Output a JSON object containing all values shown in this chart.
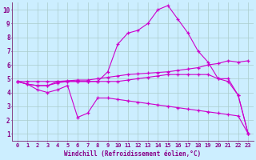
{
  "xlabel": "Windchill (Refroidissement éolien,°C)",
  "background_color": "#cceeff",
  "line_color": "#cc00cc",
  "grid_color": "#aacccc",
  "spine_color": "#884488",
  "xlim": [
    -0.5,
    23.5
  ],
  "ylim": [
    0.5,
    10.5
  ],
  "xticks": [
    0,
    1,
    2,
    3,
    4,
    5,
    6,
    7,
    8,
    9,
    10,
    11,
    12,
    13,
    14,
    15,
    16,
    17,
    18,
    19,
    20,
    21,
    22,
    23
  ],
  "yticks": [
    1,
    2,
    3,
    4,
    5,
    6,
    7,
    8,
    9,
    10
  ],
  "lines": [
    {
      "x": [
        0,
        1,
        2,
        3,
        4,
        5,
        6,
        7,
        8,
        9,
        10,
        11,
        12,
        13,
        14,
        15,
        16,
        17,
        18,
        19,
        20,
        21,
        22,
        23
      ],
      "y": [
        4.8,
        4.6,
        4.5,
        4.5,
        4.8,
        4.8,
        4.8,
        4.8,
        4.8,
        5.5,
        7.5,
        8.3,
        8.5,
        9.0,
        10.0,
        10.3,
        9.3,
        8.3,
        7.0,
        6.2,
        5.0,
        4.8,
        3.8,
        1.0
      ]
    },
    {
      "x": [
        0,
        1,
        2,
        3,
        4,
        5,
        6,
        7,
        8,
        9,
        10,
        11,
        12,
        13,
        14,
        15,
        16,
        17,
        18,
        19,
        20,
        21,
        22,
        23
      ],
      "y": [
        4.8,
        4.8,
        4.8,
        4.8,
        4.8,
        4.85,
        4.9,
        4.9,
        5.0,
        5.1,
        5.2,
        5.3,
        5.35,
        5.4,
        5.45,
        5.5,
        5.6,
        5.7,
        5.8,
        6.0,
        6.1,
        6.3,
        6.2,
        6.3
      ]
    },
    {
      "x": [
        0,
        1,
        2,
        3,
        4,
        5,
        6,
        7,
        8,
        9,
        10,
        11,
        12,
        13,
        14,
        15,
        16,
        17,
        18,
        19,
        20,
        21,
        22,
        23
      ],
      "y": [
        4.8,
        4.6,
        4.5,
        4.5,
        4.7,
        4.8,
        4.8,
        4.8,
        4.8,
        4.8,
        4.8,
        4.9,
        5.0,
        5.1,
        5.2,
        5.3,
        5.3,
        5.3,
        5.3,
        5.3,
        5.0,
        5.0,
        3.8,
        1.0
      ]
    },
    {
      "x": [
        0,
        1,
        2,
        3,
        4,
        5,
        6,
        7,
        8,
        9,
        10,
        11,
        12,
        13,
        14,
        15,
        16,
        17,
        18,
        19,
        20,
        21,
        22,
        23
      ],
      "y": [
        4.8,
        4.6,
        4.2,
        4.0,
        4.2,
        4.5,
        2.2,
        2.5,
        3.6,
        3.6,
        3.5,
        3.4,
        3.3,
        3.2,
        3.1,
        3.0,
        2.9,
        2.8,
        2.7,
        2.6,
        2.5,
        2.4,
        2.3,
        1.0
      ]
    }
  ]
}
